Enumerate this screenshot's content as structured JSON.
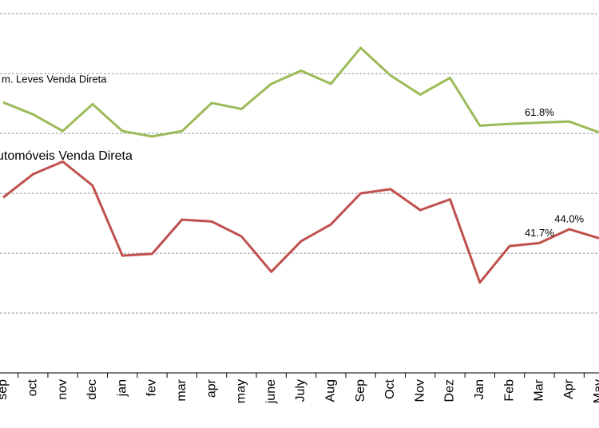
{
  "chart_data": {
    "type": "line",
    "categories": [
      "sep",
      "oct",
      "nov",
      "dec",
      "jan",
      "fev",
      "mar",
      "apr",
      "may",
      "june",
      "July",
      "Aug",
      "Sep",
      "Oct",
      "Nov",
      "Dez",
      "Jan",
      "Feb",
      "Mar",
      "Apr",
      "May"
    ],
    "series": [
      {
        "name": "m. Leves Venda Direta",
        "color": "#9bbb59",
        "values": [
          65.2,
          63.2,
          60.4,
          64.9,
          60.4,
          59.5,
          60.4,
          65.1,
          64.1,
          68.3,
          70.5,
          68.3,
          74.3,
          69.7,
          66.5,
          69.3,
          61.3,
          61.6,
          61.8,
          62.0,
          60.2
        ],
        "value_labels": [
          null,
          null,
          null,
          null,
          null,
          null,
          null,
          null,
          null,
          null,
          null,
          null,
          null,
          null,
          null,
          null,
          null,
          null,
          "61.8%",
          null,
          null
        ]
      },
      {
        "name": "utomóveis Venda Direta",
        "color": "#c0504d",
        "values": [
          49.3,
          53.2,
          55.3,
          51.3,
          39.6,
          39.9,
          45.6,
          45.3,
          42.8,
          36.9,
          42.0,
          44.8,
          50.0,
          50.7,
          47.2,
          49.0,
          35.1,
          41.2,
          41.7,
          44.0,
          42.5
        ],
        "value_labels": [
          null,
          null,
          null,
          null,
          null,
          null,
          null,
          null,
          null,
          null,
          null,
          null,
          null,
          null,
          null,
          null,
          null,
          null,
          "41.7%",
          "44.0%",
          null
        ]
      }
    ],
    "ylim": [
      20,
      82.3
    ],
    "yticks": [
      30,
      40,
      50,
      60,
      70,
      80
    ],
    "grid": true
  }
}
